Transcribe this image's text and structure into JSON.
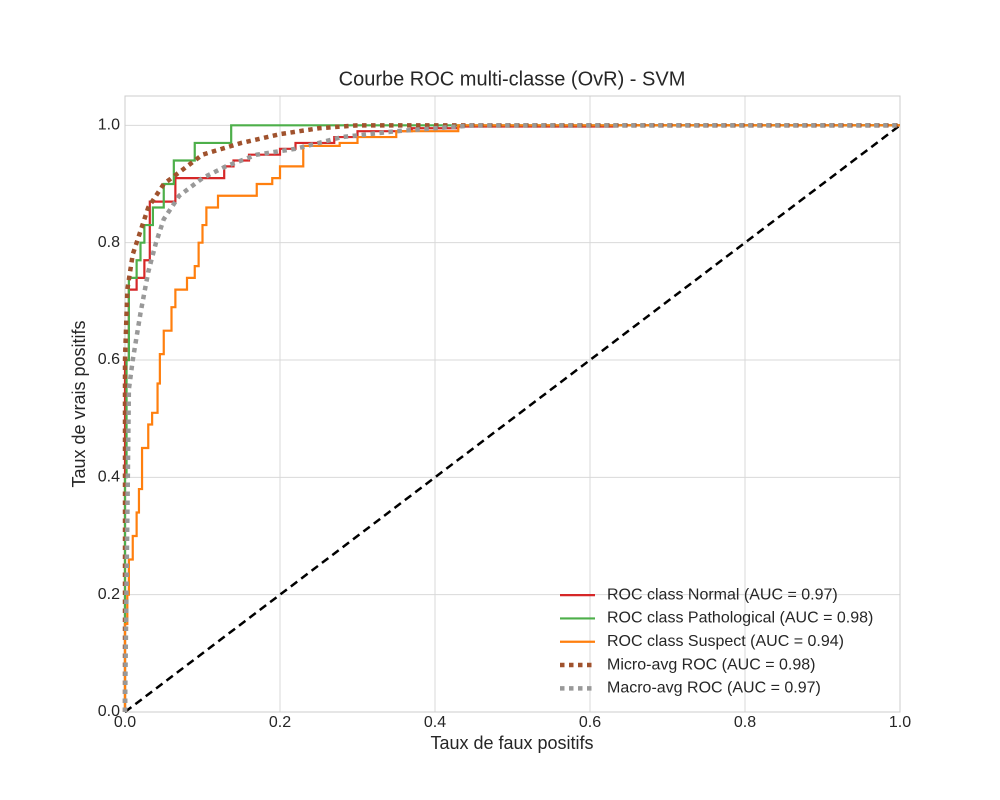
{
  "chart_data": {
    "type": "line",
    "title": "Courbe ROC multi-classe (OvR) - SVM",
    "x_label": "Taux de faux positifs",
    "y_label": "Taux de vrais positifs",
    "xlim": [
      0,
      1
    ],
    "ylim": [
      0,
      1.05
    ],
    "xticks": [
      {
        "value": 0,
        "label": "0.0"
      },
      0.2,
      0.4,
      0.6,
      0.8,
      {
        "value": 1,
        "label": "1.0"
      }
    ],
    "yticks": [
      {
        "value": 0,
        "label": "0.0"
      },
      0.2,
      0.4,
      0.6,
      0.8,
      {
        "value": 1,
        "label": "1.0"
      }
    ],
    "grid": true,
    "legend": "lower right",
    "diagonal": true,
    "series": [
      {
        "name": "ROC class Normal (AUC = 0.97)",
        "color": "#d62728",
        "style": "solid",
        "x": [
          0,
          0,
          0.005,
          0.005,
          0.015,
          0.015,
          0.025,
          0.025,
          0.032,
          0.032,
          0.065,
          0.065,
          0.128,
          0.128,
          0.14,
          0.14,
          0.16,
          0.16,
          0.2,
          0.2,
          0.22,
          0.22,
          0.27,
          0.27,
          0.3,
          0.3,
          0.37,
          0.37,
          0.43,
          0.43,
          0.63,
          0.63,
          1
        ],
        "values": [
          0,
          0.6,
          0.6,
          0.72,
          0.72,
          0.74,
          0.74,
          0.77,
          0.77,
          0.87,
          0.87,
          0.91,
          0.91,
          0.93,
          0.93,
          0.94,
          0.94,
          0.95,
          0.95,
          0.96,
          0.96,
          0.97,
          0.97,
          0.98,
          0.98,
          0.99,
          0.99,
          0.995,
          0.995,
          0.998,
          0.998,
          1,
          1
        ]
      },
      {
        "name": "ROC class Pathological (AUC = 0.98)",
        "color": "#4daf4a",
        "style": "solid",
        "x": [
          0,
          0,
          0.002,
          0.002,
          0.005,
          0.005,
          0.015,
          0.015,
          0.02,
          0.02,
          0.025,
          0.025,
          0.036,
          0.036,
          0.05,
          0.05,
          0.063,
          0.063,
          0.09,
          0.09,
          0.137,
          0.137,
          1
        ],
        "values": [
          0,
          0.4,
          0.4,
          0.6,
          0.6,
          0.74,
          0.74,
          0.77,
          0.77,
          0.8,
          0.8,
          0.83,
          0.83,
          0.86,
          0.86,
          0.9,
          0.9,
          0.94,
          0.94,
          0.97,
          0.97,
          1,
          1
        ]
      },
      {
        "name": "ROC class Suspect (AUC = 0.94)",
        "color": "#ff7f0e",
        "style": "solid",
        "x": [
          0,
          0,
          0.003,
          0.003,
          0.005,
          0.005,
          0.01,
          0.01,
          0.015,
          0.015,
          0.018,
          0.018,
          0.022,
          0.022,
          0.03,
          0.03,
          0.035,
          0.035,
          0.042,
          0.042,
          0.045,
          0.045,
          0.05,
          0.05,
          0.06,
          0.06,
          0.065,
          0.065,
          0.08,
          0.08,
          0.09,
          0.09,
          0.095,
          0.095,
          0.1,
          0.1,
          0.105,
          0.105,
          0.12,
          0.12,
          0.17,
          0.17,
          0.19,
          0.19,
          0.2,
          0.2,
          0.23,
          0.23,
          0.277,
          0.277,
          0.3,
          0.3,
          0.35,
          0.35,
          0.43,
          0.43,
          1
        ],
        "values": [
          0,
          0.15,
          0.15,
          0.2,
          0.2,
          0.26,
          0.26,
          0.3,
          0.3,
          0.34,
          0.34,
          0.38,
          0.38,
          0.45,
          0.45,
          0.49,
          0.49,
          0.51,
          0.51,
          0.56,
          0.56,
          0.61,
          0.61,
          0.65,
          0.65,
          0.69,
          0.69,
          0.72,
          0.72,
          0.74,
          0.74,
          0.76,
          0.76,
          0.8,
          0.8,
          0.83,
          0.83,
          0.86,
          0.86,
          0.88,
          0.88,
          0.9,
          0.9,
          0.91,
          0.91,
          0.93,
          0.93,
          0.965,
          0.965,
          0.97,
          0.97,
          0.98,
          0.98,
          0.99,
          0.99,
          1,
          1
        ]
      },
      {
        "name": "Micro-avg ROC (AUC = 0.98)",
        "color": "#a0522d",
        "style": "dotted",
        "x": [
          0,
          0,
          0.003,
          0.01,
          0.02,
          0.03,
          0.05,
          0.07,
          0.1,
          0.15,
          0.2,
          0.25,
          0.3,
          1
        ],
        "values": [
          0,
          0.6,
          0.72,
          0.78,
          0.82,
          0.86,
          0.9,
          0.92,
          0.95,
          0.97,
          0.985,
          0.995,
          1,
          1
        ]
      },
      {
        "name": "Macro-avg ROC (AUC = 0.97)",
        "color": "#999999",
        "style": "dotted",
        "x": [
          0,
          0.005,
          0.01,
          0.02,
          0.03,
          0.04,
          0.05,
          0.07,
          0.1,
          0.13,
          0.17,
          0.22,
          0.28,
          0.35,
          0.45,
          1
        ],
        "values": [
          0,
          0.55,
          0.6,
          0.68,
          0.75,
          0.8,
          0.84,
          0.88,
          0.91,
          0.93,
          0.95,
          0.96,
          0.98,
          0.99,
          1,
          1
        ]
      }
    ]
  }
}
